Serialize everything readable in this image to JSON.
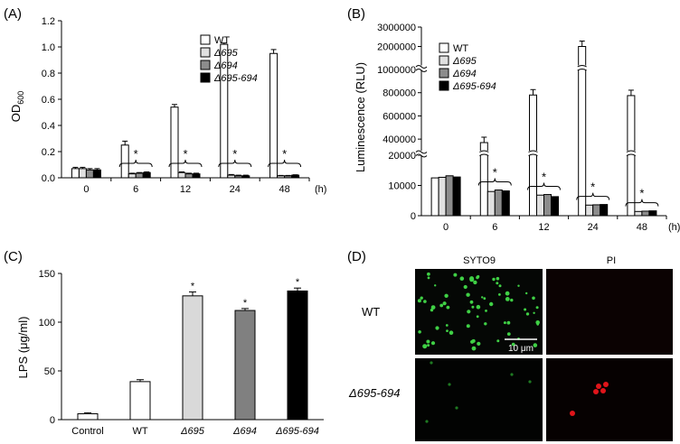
{
  "panels": {
    "A": {
      "label": "(A)"
    },
    "B": {
      "label": "(B)"
    },
    "C": {
      "label": "(C)"
    },
    "D": {
      "label": "(D)"
    }
  },
  "chart_data": [
    {
      "id": "A",
      "type": "bar",
      "ylabel": "OD",
      "ylabel_sub": "600",
      "xunit": "(h)",
      "categories": [
        "0",
        "6",
        "12",
        "24",
        "48"
      ],
      "ylim": [
        0,
        1.2
      ],
      "yticks": [
        "0.0",
        "0.2",
        "0.4",
        "0.6",
        "0.8",
        "1.0",
        "1.2"
      ],
      "legend": [
        "WT",
        "Δ695",
        "Δ694",
        "Δ695-694"
      ],
      "series": [
        {
          "name": "WT",
          "values": [
            0.07,
            0.25,
            0.54,
            1.02,
            0.95
          ],
          "errors": [
            0.01,
            0.03,
            0.02,
            0.01,
            0.03
          ],
          "color": "#ffffff"
        },
        {
          "name": "Δ695",
          "values": [
            0.07,
            0.03,
            0.04,
            0.02,
            0.015
          ],
          "errors": [
            0.01,
            0.005,
            0.005,
            0.005,
            0.003
          ],
          "color": "#e0e0e0"
        },
        {
          "name": "Δ694",
          "values": [
            0.06,
            0.035,
            0.03,
            0.015,
            0.015
          ],
          "errors": [
            0.01,
            0.005,
            0.005,
            0.005,
            0.003
          ],
          "color": "#8c8c8c"
        },
        {
          "name": "Δ695-694",
          "values": [
            0.06,
            0.04,
            0.03,
            0.015,
            0.02
          ],
          "errors": [
            0.01,
            0.005,
            0.005,
            0.005,
            0.003
          ],
          "color": "#000000"
        }
      ],
      "significance": [
        "",
        "*",
        "*",
        "*",
        "*"
      ]
    },
    {
      "id": "B",
      "type": "bar",
      "ylabel": "Luminescence (RLU)",
      "xunit": "(h)",
      "categories": [
        "0",
        "6",
        "12",
        "24",
        "48"
      ],
      "y_broken_axis": true,
      "yticks_lower": [
        "0",
        "10000",
        "20000"
      ],
      "yticks_middle": [
        "400000",
        "600000",
        "800000",
        "1000000"
      ],
      "yticks_upper": [
        "2000000",
        "3000000"
      ],
      "legend": [
        "WT",
        "Δ695",
        "Δ694",
        "Δ695-694"
      ],
      "series": [
        {
          "name": "WT",
          "values": [
            12500,
            370000,
            780000,
            2000000,
            775000
          ],
          "color": "#ffffff"
        },
        {
          "name": "Δ695",
          "values": [
            12700,
            8000,
            6800,
            3500,
            1400
          ],
          "color": "#e0e0e0"
        },
        {
          "name": "Δ694",
          "values": [
            13200,
            8500,
            7000,
            3600,
            1500
          ],
          "color": "#8c8c8c"
        },
        {
          "name": "Δ695-694",
          "values": [
            12800,
            8200,
            6300,
            3700,
            1600
          ],
          "color": "#000000"
        }
      ],
      "significance": [
        "",
        "*",
        "*",
        "*",
        "*"
      ]
    },
    {
      "id": "C",
      "type": "bar",
      "ylabel": "LPS (μg/ml)",
      "categories": [
        "Control",
        "WT",
        "Δ695",
        "Δ694",
        "Δ695-694"
      ],
      "ylim": [
        0,
        150
      ],
      "yticks": [
        "0",
        "50",
        "100",
        "150"
      ],
      "values": [
        6,
        39,
        127,
        112,
        132
      ],
      "errors": [
        1,
        2,
        4,
        2,
        3
      ],
      "colors": [
        "#ffffff",
        "#ffffff",
        "#d9d9d9",
        "#808080",
        "#000000"
      ],
      "significance": [
        "",
        "",
        "*",
        "*",
        "*"
      ]
    }
  ],
  "micrographs": {
    "col_labels": [
      "SYTO9",
      "PI"
    ],
    "row_labels": [
      "WT",
      "Δ695-694"
    ],
    "scale_bar": "10 μm"
  }
}
